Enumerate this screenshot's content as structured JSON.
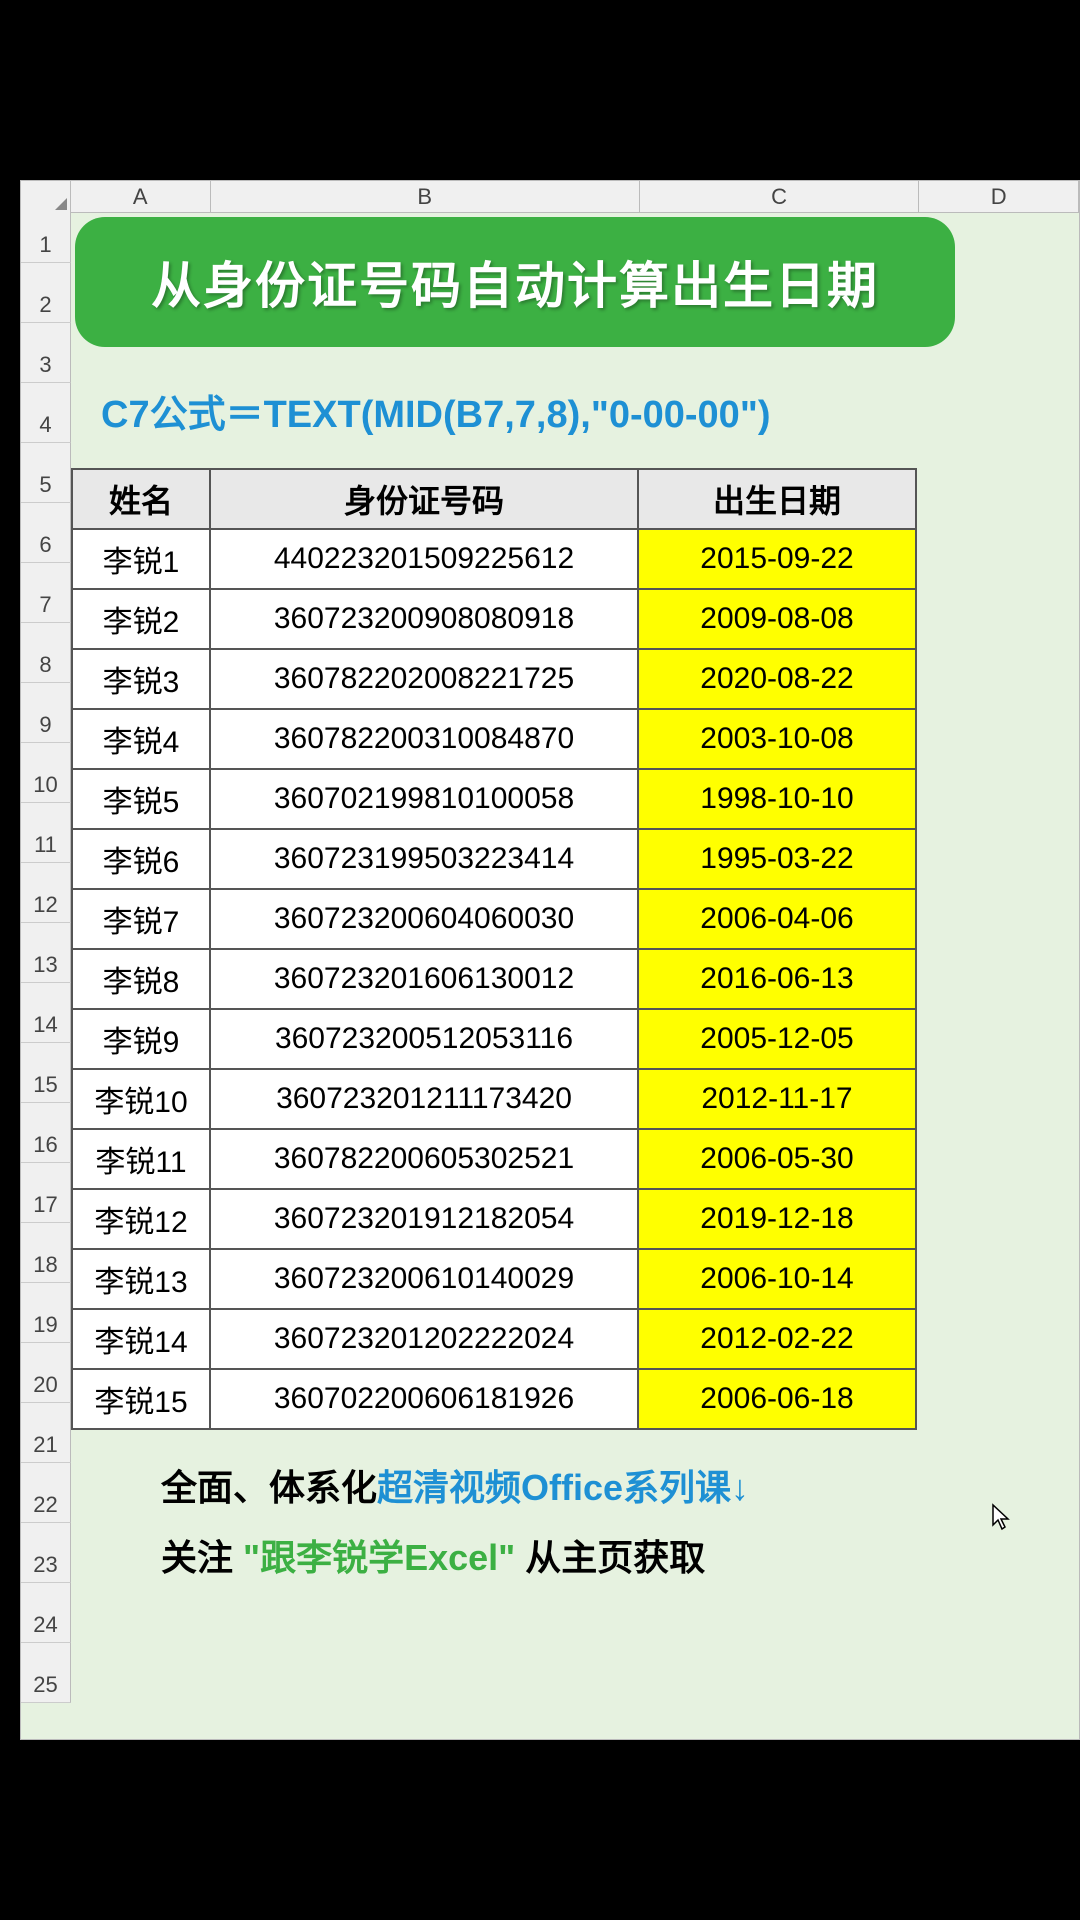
{
  "columns": [
    "A",
    "B",
    "C",
    "D"
  ],
  "rows": [
    1,
    2,
    3,
    4,
    5,
    6,
    7,
    8,
    9,
    10,
    11,
    12,
    13,
    14,
    15,
    16,
    17,
    18,
    19,
    20,
    21,
    22,
    23,
    24,
    25
  ],
  "title": "从身份证号码自动计算出生日期",
  "formula": "C7公式＝TEXT(MID(B7,7,8),\"0-00-00\")",
  "headers": {
    "name": "姓名",
    "id": "身份证号码",
    "date": "出生日期"
  },
  "data": [
    {
      "name": "李锐1",
      "id": "440223201509225612",
      "date": "2015-09-22"
    },
    {
      "name": "李锐2",
      "id": "360723200908080918",
      "date": "2009-08-08"
    },
    {
      "name": "李锐3",
      "id": "360782202008221725",
      "date": "2020-08-22"
    },
    {
      "name": "李锐4",
      "id": "360782200310084870",
      "date": "2003-10-08"
    },
    {
      "name": "李锐5",
      "id": "360702199810100058",
      "date": "1998-10-10"
    },
    {
      "name": "李锐6",
      "id": "360723199503223414",
      "date": "1995-03-22"
    },
    {
      "name": "李锐7",
      "id": "360723200604060030",
      "date": "2006-04-06"
    },
    {
      "name": "李锐8",
      "id": "360723201606130012",
      "date": "2016-06-13"
    },
    {
      "name": "李锐9",
      "id": "360723200512053116",
      "date": "2005-12-05"
    },
    {
      "name": "李锐10",
      "id": "360723201211173420",
      "date": "2012-11-17"
    },
    {
      "name": "李锐11",
      "id": "360782200605302521",
      "date": "2006-05-30"
    },
    {
      "name": "李锐12",
      "id": "360723201912182054",
      "date": "2019-12-18"
    },
    {
      "name": "李锐13",
      "id": "360723200610140029",
      "date": "2006-10-14"
    },
    {
      "name": "李锐14",
      "id": "360723201202222024",
      "date": "2012-02-22"
    },
    {
      "name": "李锐15",
      "id": "360702200606181926",
      "date": "2006-06-18"
    }
  ],
  "footer": {
    "line1a": "全面、体系化",
    "line1b": "超清视频Office系列课↓",
    "line2a": "关注",
    "line2b": "\"跟李锐学Excel\"",
    "line2c": "从主页获取"
  },
  "colors": {
    "banner_bg": "#3cb043",
    "banner_text": "#ffffff",
    "formula_text": "#1e90d4",
    "highlight_bg": "#ffff00",
    "sheet_bg": "#e6f2e0",
    "header_bg": "#e8e8e8",
    "border": "#555555"
  }
}
